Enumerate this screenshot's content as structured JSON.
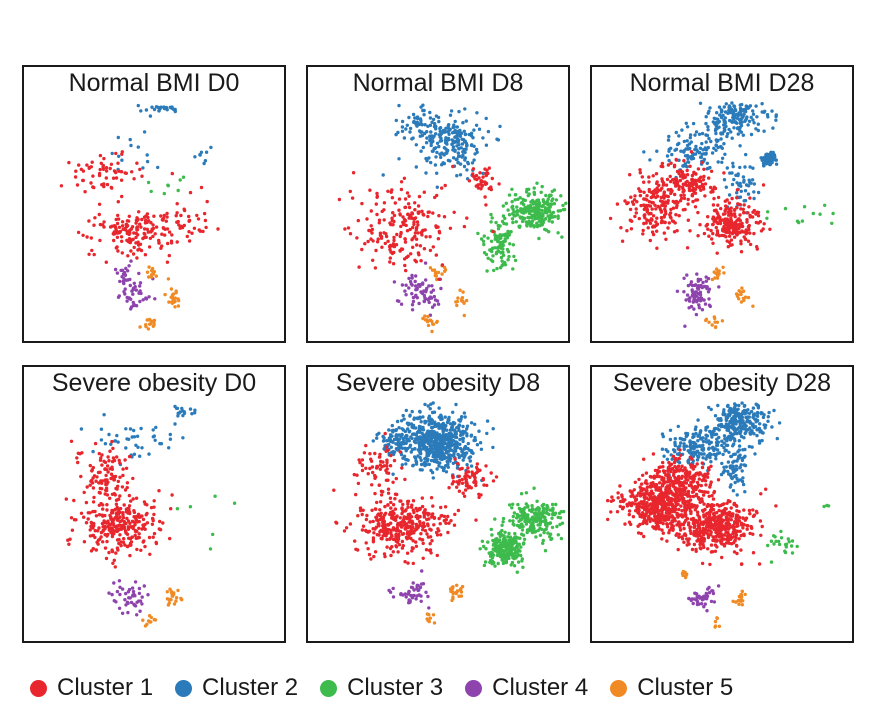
{
  "chart_data": {
    "type": "scatter",
    "description_units": "UMAP embedding (no axes shown)",
    "series": [
      {
        "name": "Cluster 1",
        "color": "#e8262d"
      },
      {
        "name": "Cluster 2",
        "color": "#2b7bba"
      },
      {
        "name": "Cluster 3",
        "color": "#3dbb4c"
      },
      {
        "name": "Cluster 4",
        "color": "#8e44ad"
      },
      {
        "name": "Cluster 5",
        "color": "#f08a24"
      }
    ],
    "panels": [
      {
        "title": "Normal BMI D0",
        "clusters": {
          "Cluster 1": 260,
          "Cluster 2": 45,
          "Cluster 3": 8,
          "Cluster 4": 60,
          "Cluster 5": 45
        }
      },
      {
        "title": "Normal BMI D8",
        "clusters": {
          "Cluster 1": 240,
          "Cluster 2": 260,
          "Cluster 3": 320,
          "Cluster 4": 70,
          "Cluster 5": 45
        }
      },
      {
        "title": "Normal BMI D28",
        "clusters": {
          "Cluster 1": 520,
          "Cluster 2": 380,
          "Cluster 3": 12,
          "Cluster 4": 80,
          "Cluster 5": 40
        }
      },
      {
        "title": "Severe obesity D0",
        "clusters": {
          "Cluster 1": 380,
          "Cluster 2": 60,
          "Cluster 3": 6,
          "Cluster 4": 45,
          "Cluster 5": 30
        }
      },
      {
        "title": "Severe obesity D8",
        "clusters": {
          "Cluster 1": 480,
          "Cluster 2": 650,
          "Cluster 3": 420,
          "Cluster 4": 45,
          "Cluster 5": 30
        }
      },
      {
        "title": "Severe obesity D28",
        "clusters": {
          "Cluster 1": 1100,
          "Cluster 2": 500,
          "Cluster 3": 25,
          "Cluster 4": 40,
          "Cluster 5": 30
        }
      }
    ]
  }
}
